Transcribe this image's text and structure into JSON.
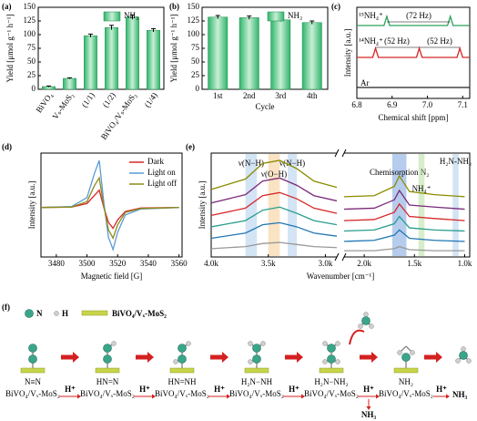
{
  "chart_data": [
    {
      "type": "bar",
      "label": "(a)",
      "categories": [
        "BiVO₄",
        "Vₛ-MoS₂",
        "(1/1)",
        "(1/2)",
        "BiVO₄/Vₛ-MoS₂",
        "(1/4)"
      ],
      "values": [
        5,
        20,
        98,
        113,
        132,
        108
      ],
      "errors": [
        1,
        1,
        3,
        4,
        4,
        3
      ],
      "color": "#2fb56a",
      "legend": "NH₃",
      "y_label": "Yield [μmol g⁻¹ h⁻¹]",
      "ylim": [
        0,
        150
      ],
      "yticks": [
        0,
        25,
        50,
        75,
        100,
        125,
        150
      ]
    },
    {
      "type": "bar",
      "label": "(b)",
      "categories": [
        "1st",
        "2nd",
        "3rd",
        "4th"
      ],
      "values": [
        132,
        131,
        127,
        122
      ],
      "errors": [
        3,
        3,
        3,
        3
      ],
      "color": "#2fb56a",
      "legend": "NH₃",
      "y_label": "Yield [μmol g⁻¹ h⁻¹]",
      "x_label": "Cycle",
      "ylim": [
        0,
        150
      ],
      "yticks": [
        0,
        25,
        50,
        75,
        100,
        125,
        150
      ]
    },
    {
      "type": "line",
      "label": "(c)",
      "x_label": "Chemical shift [ppm]",
      "y_label": "Intensity [a.u.]",
      "xlim": [
        6.8,
        7.12
      ],
      "xticks": [
        6.8,
        6.9,
        {
          "value": 7,
          "label": "7.0"
        },
        7.1
      ],
      "ylim": [
        0,
        1
      ],
      "series": [
        {
          "color": "#2ca05a",
          "x": [
            6.8,
            6.877,
            6.885,
            6.893,
            7.057,
            7.065,
            7.073,
            7.12
          ],
          "values": [
            0.8,
            0.8,
            0.9,
            0.8,
            0.8,
            0.9,
            0.8,
            0.8
          ]
        },
        {
          "color": "#d62728",
          "x": [
            6.8,
            6.845,
            6.853,
            6.861,
            6.969,
            6.977,
            6.985,
            7.084,
            7.092,
            7.1,
            7.12
          ],
          "values": [
            0.45,
            0.45,
            0.55,
            0.45,
            0.45,
            0.55,
            0.45,
            0.45,
            0.55,
            0.45,
            0.45
          ]
        },
        {
          "color": "#222222",
          "x": [
            6.8,
            7.12
          ],
          "values": [
            0.12,
            0.12
          ]
        }
      ],
      "annotations": [
        "¹⁵NH₄⁺",
        "(72 Hz)",
        "¹⁴NH₄⁺",
        "(52 Hz)",
        "(52 Hz)",
        "Ar"
      ]
    },
    {
      "type": "line",
      "label": "(d)",
      "x_label": "Magnetic field [G]",
      "y_label": "Intensity [a.u.]",
      "xlim": [
        3470,
        3562
      ],
      "xticks": [
        3480,
        3500,
        3520,
        3540,
        3560
      ],
      "ylim": [
        -1,
        1.1
      ],
      "x": [
        3470,
        3490,
        3500,
        3505,
        3508,
        3511,
        3514,
        3517,
        3520,
        3525,
        3535,
        3560
      ],
      "series": [
        {
          "name": "Dark",
          "color": "#d62728",
          "values": [
            0,
            0.01,
            0.08,
            0.25,
            0.35,
            0,
            -0.3,
            -0.42,
            -0.25,
            -0.08,
            -0.01,
            0
          ]
        },
        {
          "name": "Light on",
          "color": "#5b9bd5",
          "values": [
            0,
            0.02,
            0.2,
            0.7,
            0.95,
            0.1,
            -0.6,
            -0.85,
            -0.5,
            -0.15,
            -0.03,
            0
          ]
        },
        {
          "name": "Light off",
          "color": "#8b8b1a",
          "values": [
            0,
            0.01,
            0.12,
            0.45,
            0.6,
            0.02,
            -0.45,
            -0.62,
            -0.35,
            -0.1,
            -0.02,
            0
          ]
        }
      ]
    },
    {
      "type": "line",
      "label": "(e)",
      "x_label": "Wavenumber [cm⁻¹]",
      "y_label": "Intensity [a.u.]",
      "xlim": [
        [
          4000,
          2900
        ],
        [
          2200,
          950
        ]
      ],
      "xticks": [
        {
          "value": 4000,
          "label": "4.0k"
        },
        {
          "value": 3500,
          "label": "3.5k"
        },
        {
          "value": 3000,
          "label": "3.0k"
        },
        {
          "value": 2000,
          "label": "2.0k"
        },
        {
          "value": 1500,
          "label": "1.5k"
        },
        {
          "value": 1000,
          "label": "1.0k"
        }
      ],
      "ylim": [
        0.2,
        1.2
      ],
      "x": [
        4000,
        3700,
        3550,
        3400,
        3250,
        3100,
        2900,
        2500,
        2200,
        1900,
        1700,
        1650,
        1550,
        1300,
        1000
      ],
      "series": [
        {
          "color": "#8b8b00",
          "values": [
            0.85,
            0.95,
            1.1,
            1.13,
            1.05,
            0.93,
            0.87,
            null,
            0.78,
            0.79,
            0.88,
            0.98,
            0.83,
            0.8,
            0.78
          ]
        },
        {
          "color": "#7a2a7a",
          "values": [
            0.72,
            0.8,
            0.93,
            0.96,
            0.89,
            0.79,
            0.74,
            null,
            0.66,
            0.67,
            0.75,
            0.84,
            0.7,
            0.68,
            0.66
          ]
        },
        {
          "color": "#d62728",
          "values": [
            0.6,
            0.67,
            0.79,
            0.82,
            0.76,
            0.67,
            0.62,
            null,
            0.55,
            0.56,
            0.63,
            0.71,
            0.59,
            0.57,
            0.55
          ]
        },
        {
          "color": "#2a9d8f",
          "values": [
            0.49,
            0.55,
            0.65,
            0.68,
            0.62,
            0.55,
            0.51,
            null,
            0.45,
            0.46,
            0.52,
            0.59,
            0.48,
            0.46,
            0.45
          ]
        },
        {
          "color": "#1f77b4",
          "values": [
            0.38,
            0.43,
            0.51,
            0.53,
            0.49,
            0.43,
            0.4,
            null,
            0.35,
            0.36,
            0.41,
            0.46,
            0.38,
            0.36,
            0.35
          ]
        },
        {
          "color": "#999999",
          "values": [
            0.28,
            0.3,
            0.33,
            0.34,
            0.32,
            0.3,
            0.29,
            null,
            0.26,
            0.26,
            0.28,
            0.3,
            0.27,
            0.26,
            0.26
          ]
        }
      ],
      "bands": [
        {
          "label": "ν(N−H)",
          "x": [
            3700,
            3600
          ],
          "color": "#9dc3e6"
        },
        {
          "label": "ν(O−H)",
          "x": [
            3500,
            3400
          ],
          "color": "#f4c27a"
        },
        {
          "label": "ν(N−H)",
          "x": [
            3330,
            3250
          ],
          "color": "#9dc3e6"
        },
        {
          "label": "Chemisorption N₂",
          "x": [
            1720,
            1580
          ],
          "color": "#5b8fd6"
        },
        {
          "label": "NH₄⁺",
          "x": [
            1460,
            1400
          ],
          "color": "#a8d88a"
        },
        {
          "label": "H₂N-NH₂",
          "x": [
            1120,
            1060
          ],
          "color": "#9dc3e6"
        }
      ]
    }
  ],
  "diagram": {
    "label": "(f)",
    "legend": {
      "n": "N",
      "h": "H",
      "surface": "BiVO₄/Vₓ-MoS₂"
    },
    "steps": [
      {
        "species": "N≡N",
        "surface": "BiVO₄/Vₓ-MoS₂"
      },
      {
        "species": "HN=N",
        "surface": "BiVO₄/Vₓ-MoS₂"
      },
      {
        "species": "HN=NH",
        "surface": "BiVO₄/Vₓ-MoS₂"
      },
      {
        "species": "H₂N−NH",
        "surface": "BiVO₄/Vₓ-MoS₂"
      },
      {
        "species": "H₂N−NH₂",
        "surface": "BiVO₄/Vₓ-MoS₂"
      },
      {
        "species": "NH₂",
        "surface": "BiVO₄/Vₓ-MoS₂"
      }
    ],
    "arrows": [
      "H⁺",
      "H⁺",
      "H⁺",
      "H⁺",
      "H⁺",
      "H⁺"
    ],
    "released": "NH₃",
    "product": "NH₃"
  }
}
